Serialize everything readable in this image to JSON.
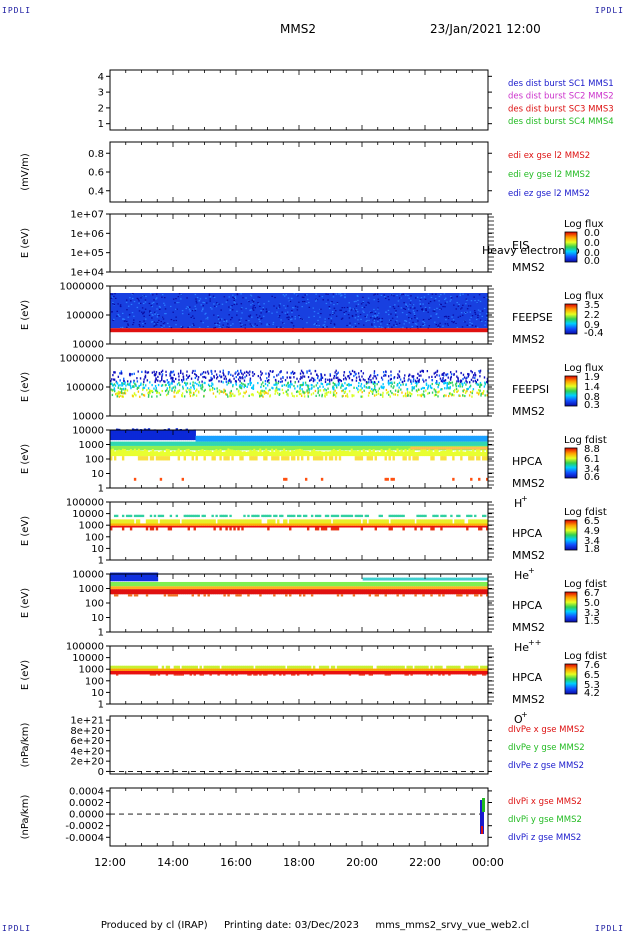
{
  "header": {
    "corner_label": "IPDLI",
    "spacecraft": "MMS2",
    "datetime": "23/Jan/2021 12:00"
  },
  "footer": {
    "produced_by": "Produced by cl (IRAP)",
    "printing_date": "Printing date: 03/Dec/2023",
    "file_name": "mms_mms2_srvy_vue_web2.cl"
  },
  "x_axis": {
    "ticks": [
      "12:00",
      "14:00",
      "16:00",
      "18:00",
      "20:00",
      "22:00",
      "00:00"
    ]
  },
  "chart_data": [
    {
      "type": "line",
      "panel": "des-dist-burst",
      "ylim": [
        0.6,
        4.4
      ],
      "y_ticks": [
        "4",
        "3",
        "2",
        "1"
      ],
      "y_tick_values": [
        4,
        3,
        2,
        1
      ],
      "series": [
        {
          "name": "des dist burst SC1 MMS1",
          "values": [],
          "color": "#1a1acc"
        },
        {
          "name": "des dist burst SC2 MMS2",
          "values": [],
          "color": "#cc33cc"
        },
        {
          "name": "des dist burst SC3 MMS3",
          "values": [],
          "color": "#dd1111"
        },
        {
          "name": "des dist burst SC4 MMS4",
          "values": [],
          "color": "#22bb22"
        }
      ]
    },
    {
      "type": "line",
      "panel": "edi-e-gse",
      "ylabel": "(mV/m)",
      "ylim": [
        0.28,
        0.92
      ],
      "y_ticks": [
        "0.8",
        "0.6",
        "0.4"
      ],
      "y_tick_values": [
        0.8,
        0.6,
        0.4
      ],
      "series": [
        {
          "name": "edi ex gse l2 MMS2",
          "values": [],
          "color": "#dd1111"
        },
        {
          "name": "edi ey gse l2 MMS2",
          "values": [],
          "color": "#22bb22"
        },
        {
          "name": "edi ez gse l2 MMS2",
          "values": [],
          "color": "#1a1acc"
        }
      ]
    },
    {
      "type": "heatmap",
      "panel": "eis",
      "ylabel": "E (eV)",
      "log_y": true,
      "y_ticks": [
        "1e+07",
        "1e+06",
        "1e+05",
        "1e+04"
      ],
      "y_tick_values": [
        10000000,
        1000000,
        100000,
        10000
      ],
      "instrument": "EIS",
      "spacecraft": "MMS2",
      "overlay_text": "Heavy electron to",
      "colorbar_title": "Log flux",
      "colorbar_ticks": [
        "0.0",
        "0.0",
        "0.0",
        "0.0"
      ]
    },
    {
      "type": "heatmap",
      "panel": "feeps-e",
      "ylabel": "E (eV)",
      "log_y": true,
      "y_ticks": [
        "1000000",
        "100000",
        "10000"
      ],
      "y_tick_values": [
        1000000,
        100000,
        10000
      ],
      "instrument": "FEEPSE",
      "spacecraft": "MMS2",
      "colorbar_title": "Log flux",
      "colorbar_ticks": [
        "3.5",
        "2.2",
        "0.9",
        "-0.4"
      ]
    },
    {
      "type": "heatmap",
      "panel": "feeps-i",
      "ylabel": "E (eV)",
      "log_y": true,
      "y_ticks": [
        "1000000",
        "100000",
        "10000"
      ],
      "y_tick_values": [
        1000000,
        100000,
        10000
      ],
      "instrument": "FEEPSI",
      "spacecraft": "MMS2",
      "colorbar_title": "Log flux",
      "colorbar_ticks": [
        "1.9",
        "1.4",
        "0.8",
        "0.3"
      ]
    },
    {
      "type": "heatmap",
      "panel": "hpca-h",
      "ylabel": "E (eV)",
      "log_y": true,
      "y_ticks": [
        "10000",
        "1000",
        "100",
        "10",
        "1"
      ],
      "y_tick_values": [
        10000,
        1000,
        100,
        10,
        1
      ],
      "instrument": "HPCA",
      "spacecraft": "MMS2",
      "species": "H",
      "species_charge": "+",
      "colorbar_title": "Log fdist",
      "colorbar_ticks": [
        "8.8",
        "6.1",
        "3.4",
        "0.6"
      ]
    },
    {
      "type": "heatmap",
      "panel": "hpca-he",
      "ylabel": "E (eV)",
      "log_y": true,
      "y_ticks": [
        "100000",
        "10000",
        "1000",
        "100",
        "10",
        "1"
      ],
      "y_tick_values": [
        100000,
        10000,
        1000,
        100,
        10,
        1
      ],
      "instrument": "HPCA",
      "spacecraft": "MMS2",
      "species": "He",
      "species_charge": "+",
      "colorbar_title": "Log fdist",
      "colorbar_ticks": [
        "6.5",
        "4.9",
        "3.4",
        "1.8"
      ]
    },
    {
      "type": "heatmap",
      "panel": "hpca-hepp",
      "ylabel": "E (eV)",
      "log_y": true,
      "y_ticks": [
        "10000",
        "1000",
        "100",
        "10",
        "1"
      ],
      "y_tick_values": [
        10000,
        1000,
        100,
        10,
        1
      ],
      "instrument": "HPCA",
      "spacecraft": "MMS2",
      "species": "He",
      "species_charge": "++",
      "colorbar_title": "Log fdist",
      "colorbar_ticks": [
        "6.7",
        "5.0",
        "3.3",
        "1.5"
      ]
    },
    {
      "type": "heatmap",
      "panel": "hpca-o",
      "ylabel": "E (eV)",
      "log_y": true,
      "y_ticks": [
        "100000",
        "10000",
        "1000",
        "100",
        "10",
        "1"
      ],
      "y_tick_values": [
        100000,
        10000,
        1000,
        100,
        10,
        1
      ],
      "instrument": "HPCA",
      "spacecraft": "MMS2",
      "species": "O",
      "species_charge": "+",
      "colorbar_title": "Log fdist",
      "colorbar_ticks": [
        "7.6",
        "6.5",
        "5.3",
        "4.2"
      ]
    },
    {
      "type": "line",
      "panel": "divpe",
      "ylabel": "(nPa/km)",
      "ylim": [
        -5e+19,
        1.08e+21
      ],
      "y_ticks": [
        "1e+21",
        "8e+20",
        "6e+20",
        "4e+20",
        "2e+20",
        "0"
      ],
      "y_tick_values": [
        1e+21,
        8e+20,
        6e+20,
        4e+20,
        2e+20,
        0
      ],
      "series": [
        {
          "name": "dIvPe x gse MMS2",
          "values": [],
          "color": "#dd1111"
        },
        {
          "name": "dIvPe y gse MMS2",
          "values": [],
          "color": "#22bb22"
        },
        {
          "name": "dIvPe z gse MMS2",
          "values": [],
          "color": "#1a1acc"
        }
      ]
    },
    {
      "type": "line",
      "panel": "divpi",
      "ylabel": "(nPa/km)",
      "ylim": [
        -0.00055,
        0.00045
      ],
      "y_ticks": [
        "0.0004",
        "0.0002",
        "0.0000",
        "-0.0002",
        "-0.0004"
      ],
      "y_tick_values": [
        0.0004,
        0.0002,
        0,
        -0.0002,
        -0.0004
      ],
      "series": [
        {
          "name": "dIvPi x gse MMS2",
          "values": [],
          "color": "#dd1111"
        },
        {
          "name": "dIvPi y gse MMS2",
          "values": [],
          "color": "#22bb22"
        },
        {
          "name": "dIvPi z gse MMS2",
          "values": [],
          "color": "#1a1acc"
        }
      ]
    }
  ]
}
